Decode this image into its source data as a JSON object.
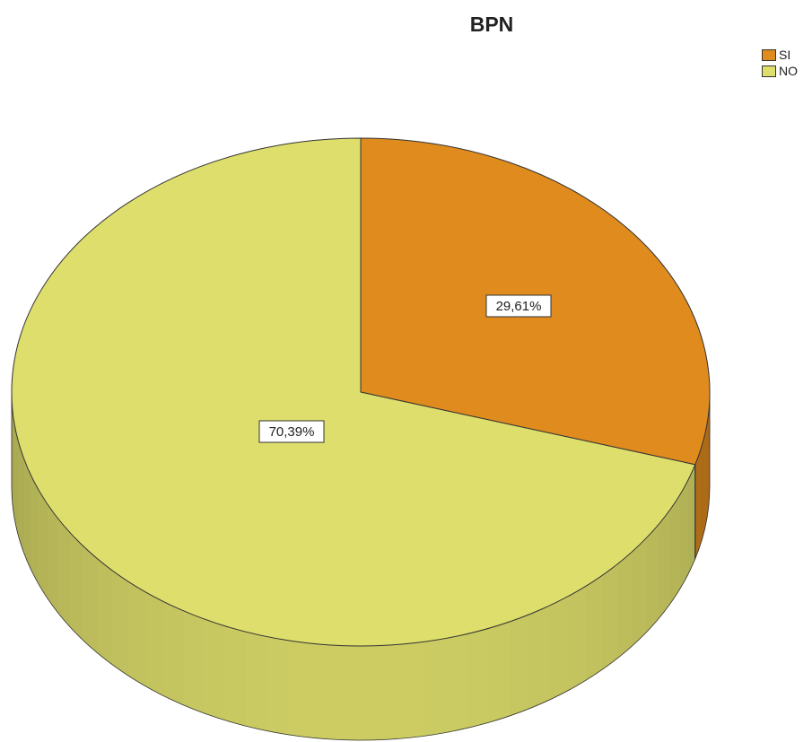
{
  "chart_data": {
    "type": "pie",
    "title": "BPN",
    "slices": [
      {
        "label": "SI",
        "value": 29.61,
        "display": "29,61%",
        "color": "#df8b1e"
      },
      {
        "label": "NO",
        "value": 70.39,
        "display": "70,39%",
        "color": "#dede6c"
      }
    ],
    "legend_position": "top-right",
    "style": "3d"
  }
}
